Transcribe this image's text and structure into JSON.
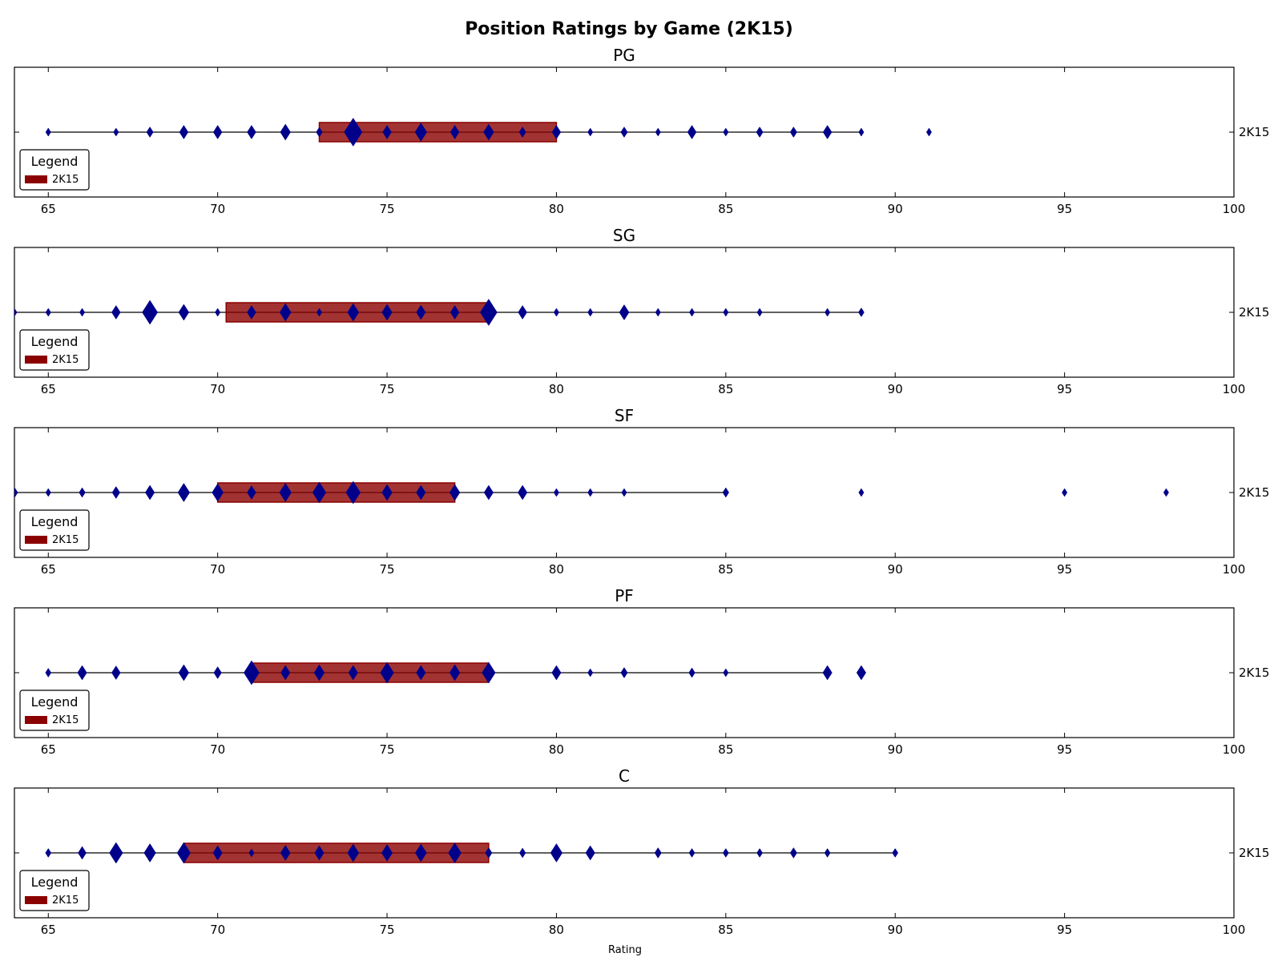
{
  "chart_data": {
    "type": "violin-range",
    "title": "Position Ratings by Game (2K15)",
    "xlabel": "Rating",
    "xlim": [
      64,
      100
    ],
    "xticks": [
      65,
      70,
      75,
      80,
      85,
      90,
      95,
      100
    ],
    "row_label": "2K15",
    "legend": {
      "title": "Legend",
      "entry": "2K15",
      "placement": "lower-left"
    },
    "colors": {
      "box": "#8b0000",
      "marker": "#00008b",
      "line": "#000000"
    },
    "panels": [
      {
        "title": "PG",
        "range": [
          65,
          89
        ],
        "box": [
          73,
          80
        ],
        "points": [
          [
            65,
            1
          ],
          [
            67,
            1
          ],
          [
            68,
            1.3
          ],
          [
            69,
            1.7
          ],
          [
            70,
            1.7
          ],
          [
            71,
            1.7
          ],
          [
            72,
            2
          ],
          [
            73,
            1.2
          ],
          [
            74,
            3.5
          ],
          [
            75,
            1.7
          ],
          [
            76,
            2.3
          ],
          [
            77,
            1.7
          ],
          [
            78,
            2
          ],
          [
            79,
            1.3
          ],
          [
            80,
            1.7
          ],
          [
            81,
            1
          ],
          [
            82,
            1.3
          ],
          [
            83,
            1
          ],
          [
            84,
            1.7
          ],
          [
            85,
            1
          ],
          [
            86,
            1.3
          ],
          [
            87,
            1.3
          ],
          [
            88,
            1.7
          ],
          [
            89,
            1
          ],
          [
            91,
            1
          ]
        ]
      },
      {
        "title": "SG",
        "range": [
          64,
          89
        ],
        "box": [
          70.25,
          78
        ],
        "points": [
          [
            64,
            1
          ],
          [
            65,
            1
          ],
          [
            66,
            1
          ],
          [
            67,
            1.7
          ],
          [
            68,
            3
          ],
          [
            69,
            2
          ],
          [
            70,
            1
          ],
          [
            71,
            1.7
          ],
          [
            72,
            2.2
          ],
          [
            73,
            1
          ],
          [
            74,
            2.2
          ],
          [
            75,
            2
          ],
          [
            76,
            1.8
          ],
          [
            77,
            1.7
          ],
          [
            78,
            3.3
          ],
          [
            79,
            1.7
          ],
          [
            80,
            1
          ],
          [
            81,
            1
          ],
          [
            82,
            1.9
          ],
          [
            83,
            1
          ],
          [
            84,
            1
          ],
          [
            85,
            1
          ],
          [
            86,
            1
          ],
          [
            88,
            1
          ],
          [
            89,
            1.1
          ]
        ]
      },
      {
        "title": "SF",
        "range": [
          64,
          85
        ],
        "box": [
          70,
          77
        ],
        "points": [
          [
            64,
            1.3
          ],
          [
            65,
            1
          ],
          [
            66,
            1.2
          ],
          [
            67,
            1.5
          ],
          [
            68,
            1.8
          ],
          [
            69,
            2.3
          ],
          [
            70,
            2.2
          ],
          [
            71,
            1.7
          ],
          [
            72,
            2.3
          ],
          [
            73,
            2.6
          ],
          [
            74,
            2.8
          ],
          [
            75,
            2
          ],
          [
            76,
            1.8
          ],
          [
            77,
            2
          ],
          [
            78,
            1.8
          ],
          [
            79,
            1.8
          ],
          [
            80,
            1
          ],
          [
            81,
            1
          ],
          [
            82,
            1
          ],
          [
            85,
            1.2
          ],
          [
            89,
            1
          ],
          [
            95,
            1
          ],
          [
            98,
            1
          ]
        ]
      },
      {
        "title": "PF",
        "range": [
          65,
          88
        ],
        "box": [
          71,
          78
        ],
        "points": [
          [
            65,
            1.1
          ],
          [
            66,
            1.8
          ],
          [
            67,
            1.7
          ],
          [
            69,
            2
          ],
          [
            70,
            1.5
          ],
          [
            71,
            3
          ],
          [
            72,
            1.8
          ],
          [
            73,
            2
          ],
          [
            74,
            1.8
          ],
          [
            75,
            2.6
          ],
          [
            76,
            1.8
          ],
          [
            77,
            2
          ],
          [
            78,
            2.6
          ],
          [
            80,
            1.8
          ],
          [
            81,
            1
          ],
          [
            82,
            1.3
          ],
          [
            84,
            1.2
          ],
          [
            85,
            1
          ],
          [
            88,
            1.8
          ],
          [
            89,
            1.8
          ]
        ]
      },
      {
        "title": "C",
        "range": [
          65,
          90
        ],
        "box": [
          69,
          78
        ],
        "points": [
          [
            65,
            1.1
          ],
          [
            66,
            1.6
          ],
          [
            67,
            2.6
          ],
          [
            68,
            2.3
          ],
          [
            69,
            2.6
          ],
          [
            70,
            1.8
          ],
          [
            71,
            1
          ],
          [
            72,
            1.9
          ],
          [
            73,
            1.8
          ],
          [
            74,
            2.2
          ],
          [
            75,
            2.1
          ],
          [
            76,
            2.2
          ],
          [
            77,
            2.5
          ],
          [
            78,
            1.3
          ],
          [
            79,
            1.2
          ],
          [
            80,
            2.3
          ],
          [
            81,
            1.8
          ],
          [
            83,
            1.3
          ],
          [
            84,
            1.1
          ],
          [
            85,
            1.1
          ],
          [
            86,
            1.1
          ],
          [
            87,
            1.3
          ],
          [
            88,
            1.1
          ],
          [
            90,
            1.1
          ]
        ]
      }
    ]
  }
}
